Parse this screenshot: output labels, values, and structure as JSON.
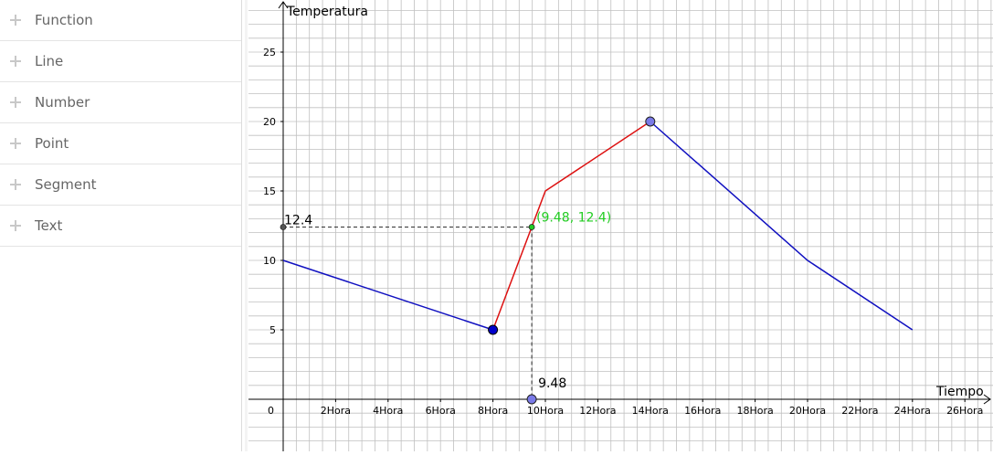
{
  "sidebar": {
    "categories": [
      {
        "label": "Function"
      },
      {
        "label": "Line"
      },
      {
        "label": "Number"
      },
      {
        "label": "Point"
      },
      {
        "label": "Segment"
      },
      {
        "label": "Text"
      }
    ]
  },
  "colors": {
    "grid": "#c0c0c0",
    "axis": "#000000",
    "blue_line": "#1010c0",
    "red_line": "#dd1111",
    "point_fill": "#7a7ae8",
    "point_dark": "#0000cc",
    "highlight": "#22cc22"
  },
  "chart_data": {
    "type": "line",
    "title": "",
    "xlabel": "Tiempo",
    "ylabel": "Temperatura",
    "xlim": [
      0,
      27
    ],
    "ylim": [
      0,
      28
    ],
    "grid": true,
    "x_ticks": [
      {
        "value": 2,
        "label": "2Hora"
      },
      {
        "value": 4,
        "label": "4Hora"
      },
      {
        "value": 6,
        "label": "6Hora"
      },
      {
        "value": 8,
        "label": "8Hora"
      },
      {
        "value": 10,
        "label": "10Hora"
      },
      {
        "value": 12,
        "label": "12Hora"
      },
      {
        "value": 14,
        "label": "14Hora"
      },
      {
        "value": 16,
        "label": "16Hora"
      },
      {
        "value": 18,
        "label": "18Hora"
      },
      {
        "value": 20,
        "label": "20Hora"
      },
      {
        "value": 22,
        "label": "22Hora"
      },
      {
        "value": 24,
        "label": "24Hora"
      },
      {
        "value": 26,
        "label": "26Hora"
      }
    ],
    "y_ticks": [
      {
        "value": 5,
        "label": "5"
      },
      {
        "value": 10,
        "label": "10"
      },
      {
        "value": 15,
        "label": "15"
      },
      {
        "value": 20,
        "label": "20"
      },
      {
        "value": 25,
        "label": "25"
      }
    ],
    "origin_label": "0",
    "series": [
      {
        "color": "#1010c0",
        "points": [
          [
            0,
            10
          ],
          [
            8,
            5
          ]
        ]
      },
      {
        "color": "#dd1111",
        "points": [
          [
            8,
            5
          ],
          [
            10,
            15
          ],
          [
            14,
            20
          ]
        ]
      },
      {
        "color": "#1010c0",
        "points": [
          [
            14,
            20
          ],
          [
            20,
            10
          ],
          [
            24,
            5
          ]
        ]
      }
    ],
    "points": [
      {
        "x": 8,
        "y": 5,
        "style": "dark"
      },
      {
        "x": 14,
        "y": 20,
        "style": "light"
      },
      {
        "x": 9.48,
        "y": 0,
        "style": "light"
      },
      {
        "x": 0,
        "y": 12.4,
        "style": "small-dark"
      },
      {
        "x": 9.48,
        "y": 12.4,
        "style": "small-green"
      }
    ],
    "guide": {
      "x": 9.48,
      "y": 12.4
    },
    "annotations": {
      "point_label": "(9.48, 12.4)",
      "x_value_label": "9.48",
      "y_value_label": "12.4"
    }
  }
}
